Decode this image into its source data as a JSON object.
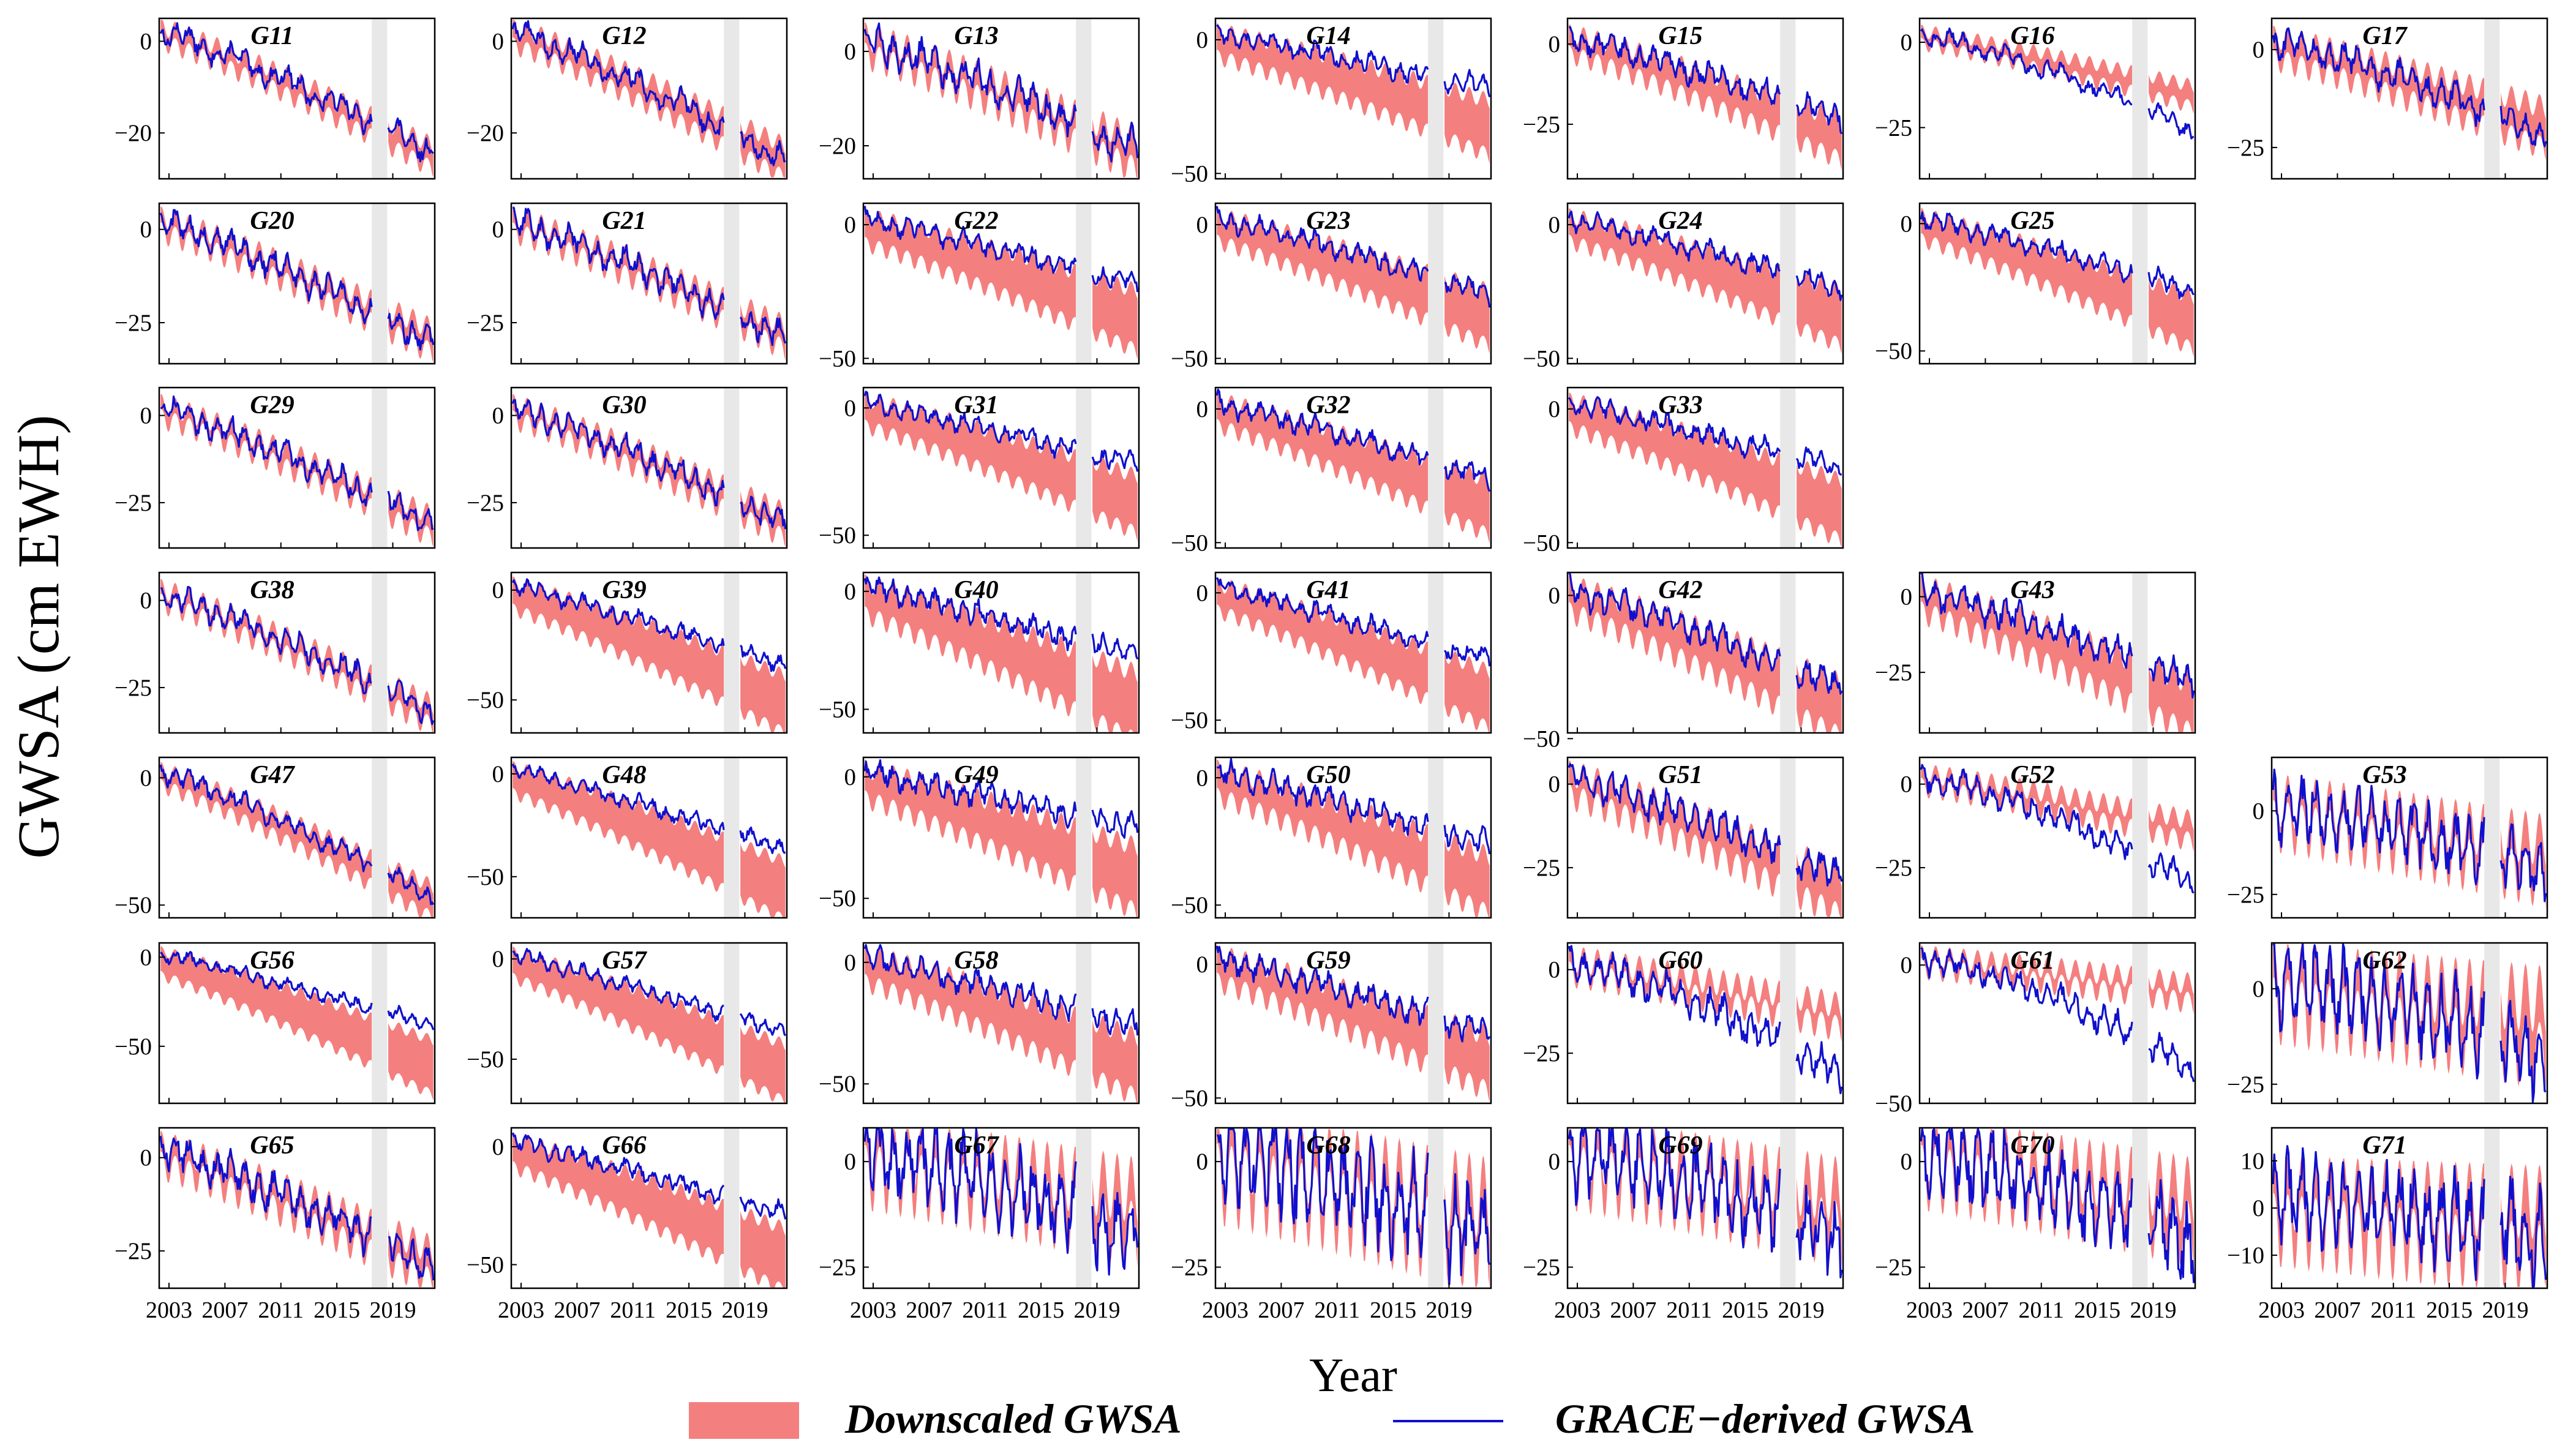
{
  "chart_data": {
    "type": "line",
    "ylabel": "GWSA (cm EWH)",
    "xlabel": "Year",
    "x_ticks": [
      "2003",
      "2007",
      "2011",
      "2015",
      "2019"
    ],
    "x_range": [
      2002.3,
      2022.0
    ],
    "grace_gap": [
      2017.5,
      2018.6
    ],
    "legend": {
      "band": "Downscaled GWSA",
      "line": "GRACE−derived GWSA"
    },
    "colors": {
      "band": "#f47f7f",
      "line": "#1010cc",
      "gap": "#e8e8e8"
    },
    "panels": [
      {
        "title": "G11",
        "row": 0,
        "col": 0,
        "ylim": [
          -30,
          5
        ],
        "yticks": [
          0,
          -20
        ],
        "trend": -26,
        "amp": 2,
        "spread": 3,
        "dev": 0
      },
      {
        "title": "G12",
        "row": 0,
        "col": 1,
        "ylim": [
          -30,
          5
        ],
        "yticks": [
          0,
          -20
        ],
        "trend": -26,
        "amp": 2,
        "spread": 5,
        "dev": -2
      },
      {
        "title": "G13",
        "row": 0,
        "col": 2,
        "ylim": [
          -27,
          7
        ],
        "yticks": [
          0,
          -20
        ],
        "trend": -22,
        "amp": 3,
        "spread": 4,
        "dev": -1
      },
      {
        "title": "G14",
        "row": 0,
        "col": 3,
        "ylim": [
          -52,
          8
        ],
        "yticks": [
          0,
          -50
        ],
        "trend": -26,
        "amp": 3,
        "spread": 18,
        "dev": 6
      },
      {
        "title": "G15",
        "row": 0,
        "col": 4,
        "ylim": [
          -42,
          8
        ],
        "yticks": [
          0,
          -25
        ],
        "trend": -27,
        "amp": 3,
        "spread": 10,
        "dev": 2
      },
      {
        "title": "G16",
        "row": 0,
        "col": 5,
        "ylim": [
          -40,
          7
        ],
        "yticks": [
          0,
          -25
        ],
        "trend": -16,
        "amp": 2,
        "spread": 4,
        "dev": -12
      },
      {
        "title": "G17",
        "row": 0,
        "col": 6,
        "ylim": [
          -33,
          8
        ],
        "yticks": [
          0,
          -25
        ],
        "trend": -18,
        "amp": 3,
        "spread": 8,
        "dev": -6
      },
      {
        "title": "G20",
        "row": 1,
        "col": 0,
        "ylim": [
          -36,
          7
        ],
        "yticks": [
          0,
          -25
        ],
        "trend": -30,
        "amp": 3,
        "spread": 4,
        "dev": -2
      },
      {
        "title": "G21",
        "row": 1,
        "col": 1,
        "ylim": [
          -36,
          7
        ],
        "yticks": [
          0,
          -25
        ],
        "trend": -29,
        "amp": 3,
        "spread": 4,
        "dev": -2
      },
      {
        "title": "G22",
        "row": 1,
        "col": 2,
        "ylim": [
          -52,
          8
        ],
        "yticks": [
          0,
          -50
        ],
        "trend": -28,
        "amp": 3,
        "spread": 20,
        "dev": 4
      },
      {
        "title": "G23",
        "row": 1,
        "col": 3,
        "ylim": [
          -52,
          8
        ],
        "yticks": [
          0,
          -50
        ],
        "trend": -28,
        "amp": 3,
        "spread": 18,
        "dev": 0
      },
      {
        "title": "G24",
        "row": 1,
        "col": 4,
        "ylim": [
          -52,
          8
        ],
        "yticks": [
          0,
          -50
        ],
        "trend": -28,
        "amp": 3,
        "spread": 18,
        "dev": 2
      },
      {
        "title": "G25",
        "row": 1,
        "col": 5,
        "ylim": [
          -55,
          8
        ],
        "yticks": [
          0,
          -50
        ],
        "trend": -32,
        "amp": 3,
        "spread": 18,
        "dev": 4
      },
      {
        "title": "G29",
        "row": 2,
        "col": 0,
        "ylim": [
          -38,
          8
        ],
        "yticks": [
          0,
          -25
        ],
        "trend": -32,
        "amp": 3,
        "spread": 4,
        "dev": -1
      },
      {
        "title": "G30",
        "row": 2,
        "col": 1,
        "ylim": [
          -38,
          8
        ],
        "yticks": [
          0,
          -25
        ],
        "trend": -31,
        "amp": 3,
        "spread": 5,
        "dev": -2
      },
      {
        "title": "G31",
        "row": 2,
        "col": 2,
        "ylim": [
          -55,
          8
        ],
        "yticks": [
          0,
          -50
        ],
        "trend": -30,
        "amp": 3,
        "spread": 20,
        "dev": 6
      },
      {
        "title": "G32",
        "row": 2,
        "col": 3,
        "ylim": [
          -52,
          8
        ],
        "yticks": [
          0,
          -50
        ],
        "trend": -30,
        "amp": 3,
        "spread": 18,
        "dev": 2
      },
      {
        "title": "G33",
        "row": 2,
        "col": 4,
        "ylim": [
          -52,
          8
        ],
        "yticks": [
          0,
          -50
        ],
        "trend": -30,
        "amp": 3,
        "spread": 20,
        "dev": 6
      },
      {
        "title": "G38",
        "row": 3,
        "col": 0,
        "ylim": [
          -38,
          8
        ],
        "yticks": [
          0,
          -25
        ],
        "trend": -33,
        "amp": 3,
        "spread": 4,
        "dev": -1
      },
      {
        "title": "G39",
        "row": 3,
        "col": 1,
        "ylim": [
          -65,
          8
        ],
        "yticks": [
          0,
          -50
        ],
        "trend": -42,
        "amp": 3,
        "spread": 24,
        "dev": 6
      },
      {
        "title": "G40",
        "row": 3,
        "col": 2,
        "ylim": [
          -60,
          8
        ],
        "yticks": [
          0,
          -50
        ],
        "trend": -38,
        "amp": 4,
        "spread": 26,
        "dev": 10
      },
      {
        "title": "G41",
        "row": 3,
        "col": 3,
        "ylim": [
          -55,
          8
        ],
        "yticks": [
          0,
          -50
        ],
        "trend": -34,
        "amp": 3,
        "spread": 20,
        "dev": 6
      },
      {
        "title": "G42",
        "row": 3,
        "col": 4,
        "ylim": [
          -48,
          8
        ],
        "yticks": [
          0,
          -50
        ],
        "trend": -34,
        "amp": 4,
        "spread": 16,
        "dev": 0
      },
      {
        "title": "G43",
        "row": 3,
        "col": 5,
        "ylim": [
          -45,
          8
        ],
        "yticks": [
          0,
          -25
        ],
        "trend": -32,
        "amp": 4,
        "spread": 14,
        "dev": 2
      },
      {
        "title": "G47",
        "row": 4,
        "col": 0,
        "ylim": [
          -55,
          8
        ],
        "yticks": [
          0,
          -50
        ],
        "trend": -46,
        "amp": 3,
        "spread": 10,
        "dev": -3
      },
      {
        "title": "G48",
        "row": 4,
        "col": 1,
        "ylim": [
          -70,
          8
        ],
        "yticks": [
          0,
          -50
        ],
        "trend": -46,
        "amp": 3,
        "spread": 26,
        "dev": 8
      },
      {
        "title": "G49",
        "row": 4,
        "col": 2,
        "ylim": [
          -58,
          8
        ],
        "yticks": [
          0,
          -50
        ],
        "trend": -32,
        "amp": 4,
        "spread": 24,
        "dev": 10
      },
      {
        "title": "G50",
        "row": 4,
        "col": 3,
        "ylim": [
          -55,
          8
        ],
        "yticks": [
          0,
          -50
        ],
        "trend": -34,
        "amp": 4,
        "spread": 20,
        "dev": 6
      },
      {
        "title": "G51",
        "row": 4,
        "col": 4,
        "ylim": [
          -40,
          8
        ],
        "yticks": [
          0,
          -25
        ],
        "trend": -30,
        "amp": 4,
        "spread": 10,
        "dev": 0
      },
      {
        "title": "G52",
        "row": 4,
        "col": 5,
        "ylim": [
          -40,
          8
        ],
        "yticks": [
          0,
          -25
        ],
        "trend": -14,
        "amp": 3,
        "spread": 4,
        "dev": -18
      },
      {
        "title": "G53",
        "row": 4,
        "col": 6,
        "ylim": [
          -32,
          16
        ],
        "yticks": [
          0,
          -25
        ],
        "trend": -12,
        "amp": 8,
        "spread": 8,
        "dev": -8
      },
      {
        "title": "G56",
        "row": 5,
        "col": 0,
        "ylim": [
          -82,
          8
        ],
        "yticks": [
          0,
          -50
        ],
        "trend": -50,
        "amp": 3,
        "spread": 28,
        "dev": 10
      },
      {
        "title": "G57",
        "row": 5,
        "col": 1,
        "ylim": [
          -72,
          8
        ],
        "yticks": [
          0,
          -50
        ],
        "trend": -46,
        "amp": 3,
        "spread": 26,
        "dev": 8
      },
      {
        "title": "G58",
        "row": 5,
        "col": 2,
        "ylim": [
          -58,
          8
        ],
        "yticks": [
          0,
          -50
        ],
        "trend": -34,
        "amp": 4,
        "spread": 22,
        "dev": 6
      },
      {
        "title": "G59",
        "row": 5,
        "col": 3,
        "ylim": [
          -52,
          8
        ],
        "yticks": [
          0,
          -50
        ],
        "trend": -30,
        "amp": 4,
        "spread": 18,
        "dev": 2
      },
      {
        "title": "G60",
        "row": 5,
        "col": 4,
        "ylim": [
          -40,
          8
        ],
        "yticks": [
          0,
          -25
        ],
        "trend": -14,
        "amp": 4,
        "spread": 4,
        "dev": -20
      },
      {
        "title": "G61",
        "row": 5,
        "col": 5,
        "ylim": [
          -50,
          8
        ],
        "yticks": [
          0,
          -50
        ],
        "trend": -10,
        "amp": 4,
        "spread": 4,
        "dev": -30
      },
      {
        "title": "G62",
        "row": 5,
        "col": 6,
        "ylim": [
          -30,
          12
        ],
        "yticks": [
          0,
          -25
        ],
        "trend": -6,
        "amp": 9,
        "spread": 10,
        "dev": -14
      },
      {
        "title": "G65",
        "row": 6,
        "col": 0,
        "ylim": [
          -35,
          8
        ],
        "yticks": [
          0,
          -25
        ],
        "trend": -28,
        "amp": 4,
        "spread": 6,
        "dev": -3
      },
      {
        "title": "G66",
        "row": 6,
        "col": 1,
        "ylim": [
          -60,
          8
        ],
        "yticks": [
          0,
          -50
        ],
        "trend": -38,
        "amp": 3,
        "spread": 24,
        "dev": 8
      },
      {
        "title": "G67",
        "row": 6,
        "col": 2,
        "ylim": [
          -30,
          8
        ],
        "yticks": [
          0,
          -25
        ],
        "trend": -10,
        "amp": 8,
        "spread": 6,
        "dev": -10
      },
      {
        "title": "G68",
        "row": 6,
        "col": 3,
        "ylim": [
          -30,
          8
        ],
        "yticks": [
          0,
          -25
        ],
        "trend": -12,
        "amp": 10,
        "spread": 8,
        "dev": -8
      },
      {
        "title": "G69",
        "row": 6,
        "col": 4,
        "ylim": [
          -30,
          8
        ],
        "yticks": [
          0,
          -25
        ],
        "trend": -10,
        "amp": 8,
        "spread": 6,
        "dev": -10
      },
      {
        "title": "G70",
        "row": 6,
        "col": 5,
        "ylim": [
          -30,
          8
        ],
        "yticks": [
          0,
          -25
        ],
        "trend": -10,
        "amp": 8,
        "spread": 6,
        "dev": -12
      },
      {
        "title": "G71",
        "row": 6,
        "col": 6,
        "ylim": [
          -17,
          17
        ],
        "yticks": [
          10,
          0,
          -10
        ],
        "trend": -2,
        "amp": 8,
        "spread": 8,
        "dev": -6
      }
    ]
  }
}
